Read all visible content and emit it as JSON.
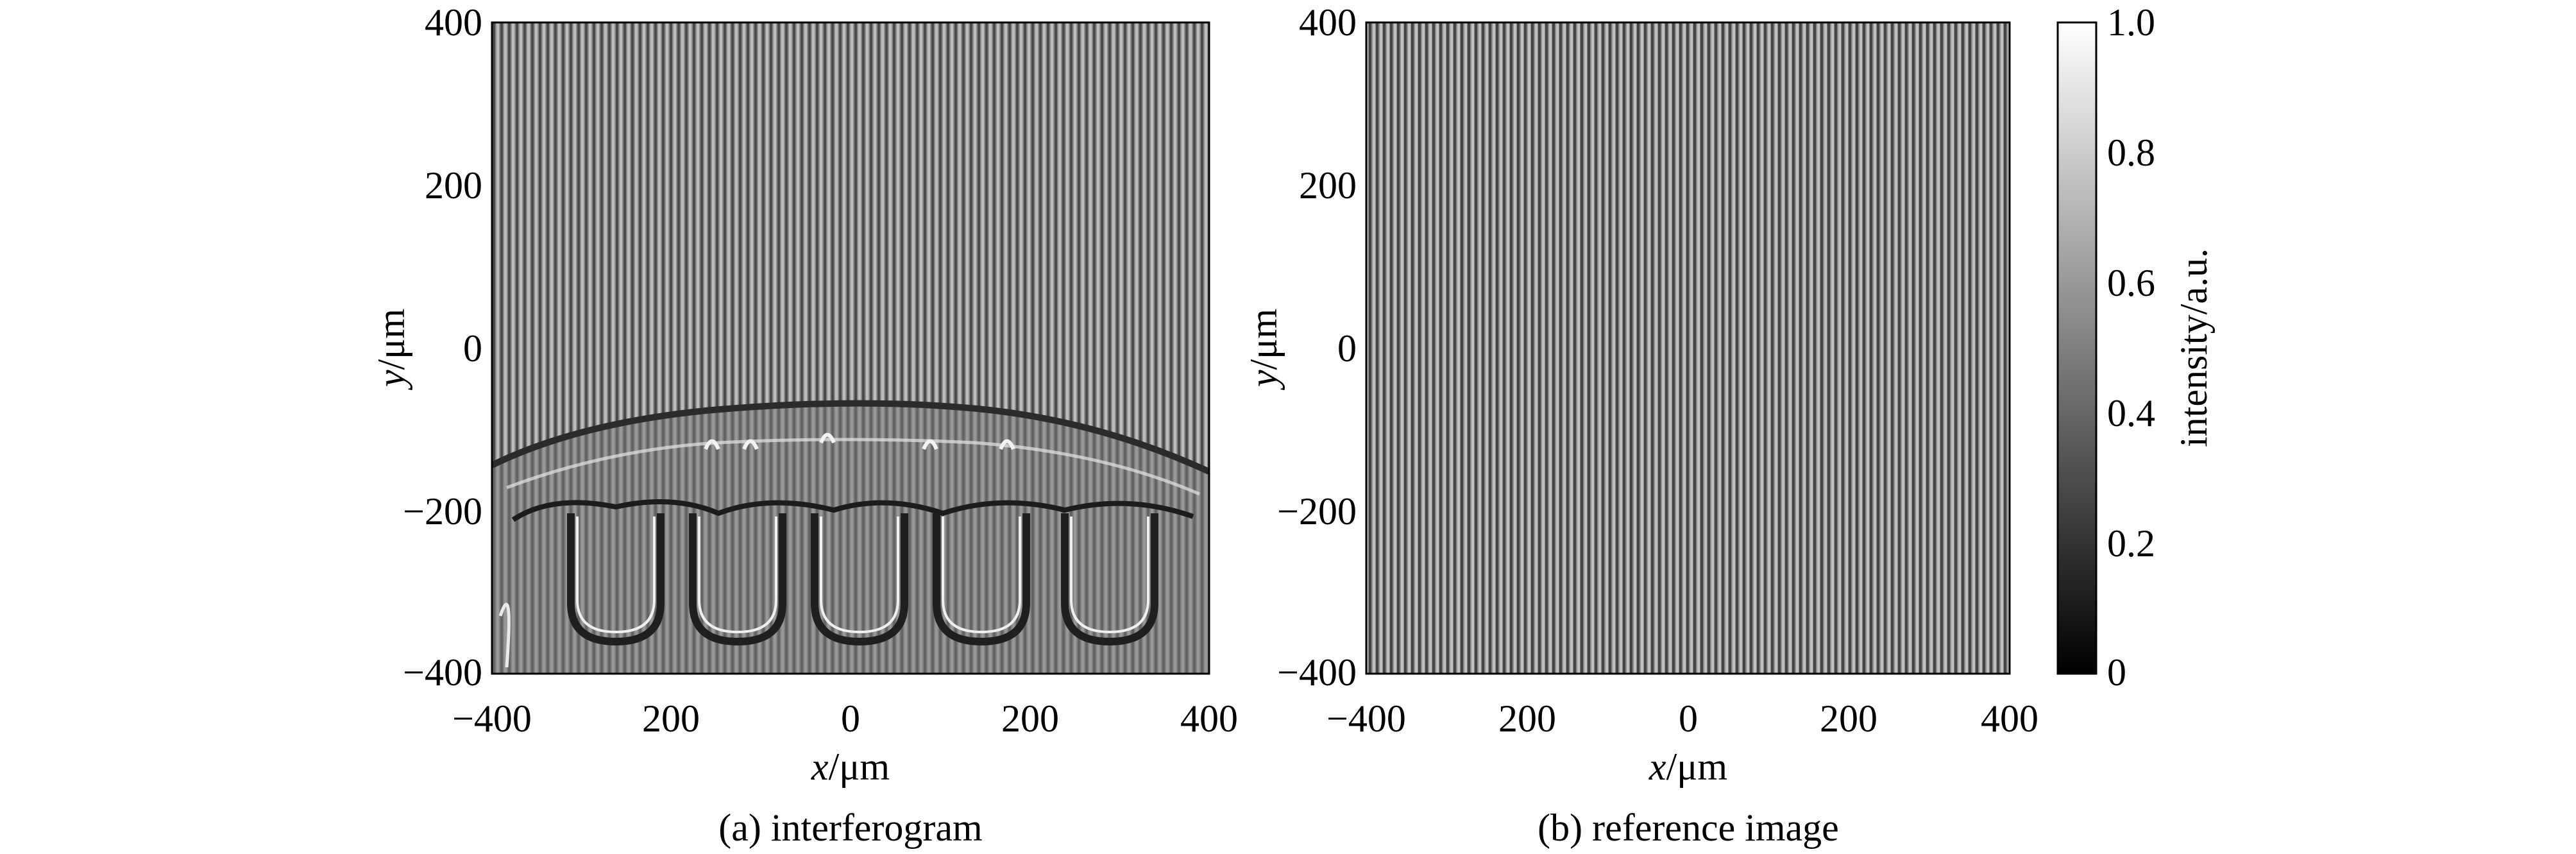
{
  "panels": [
    {
      "caption": "(a) interferogram",
      "xlabel_var": "x",
      "xlabel_unit": "/μm",
      "ylabel_var": "y",
      "ylabel_unit": "/μm",
      "x_ticks": [
        "−400",
        "200",
        "0",
        "200",
        "400"
      ],
      "y_ticks": [
        "400",
        "200",
        "0",
        "−200",
        "−400"
      ]
    },
    {
      "caption": "(b) reference image",
      "xlabel_var": "x",
      "xlabel_unit": "/μm",
      "ylabel_var": "y",
      "ylabel_unit": "/μm",
      "x_ticks": [
        "−400",
        "200",
        "0",
        "200",
        "400"
      ],
      "y_ticks": [
        "400",
        "200",
        "0",
        "−200",
        "−400"
      ]
    }
  ],
  "colorbar": {
    "label": "intensity/a.u.",
    "ticks": [
      "1.0",
      "0.8",
      "0.6",
      "0.4",
      "0.2",
      "0"
    ],
    "colormap": "grayscale"
  },
  "colors": {
    "fringe_dark": "#3a3a3a",
    "fringe_light": "#b5b5b5",
    "background": "#ffffff"
  }
}
